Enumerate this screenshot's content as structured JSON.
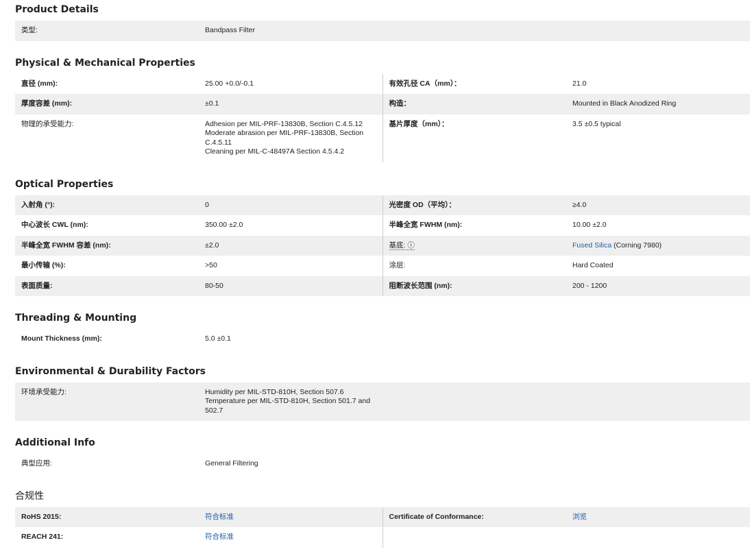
{
  "sections": [
    {
      "title": "Product Details",
      "rows": [
        {
          "label": "类型:",
          "value": "Bandpass Filter"
        }
      ]
    },
    {
      "title": "Physical & Mechanical Properties",
      "rows": [
        {
          "label": "直径 (mm):",
          "value": "25.00 +0.0/-0.1",
          "label2": "有效孔径 CA（mm）：",
          "value2": "21.0"
        },
        {
          "label": "厚度容差 (mm):",
          "value": "±0.1",
          "label2": "构造：",
          "value2": "Mounted in Black Anodized Ring"
        },
        {
          "label": "物理的承受能力:",
          "value": [
            "Adhesion per MIL-PRF-13830B, Section C.4.5.12",
            "Moderate abrasion per MIL-PRF-13830B, Section C.4.5.11",
            "Cleaning per MIL-C-48497A Section 4.5.4.2"
          ],
          "label2": "基片厚度（mm）：",
          "value2": "3.5 ±0.5 typical"
        }
      ]
    },
    {
      "title": "Optical Properties",
      "rows": [
        {
          "label": "入射角 (°):",
          "value": "0",
          "label2": "光密度 OD（平均）：",
          "value2": "≥4.0"
        },
        {
          "label": "中心波长 CWL (nm):",
          "value": "350.00 ±2.0",
          "label2": "半峰全宽 FWHM (nm):",
          "value2": "10.00 ±2.0"
        },
        {
          "label": "半峰全宽 FWHM 容差 (nm):",
          "value": "±2.0",
          "label2": "基底: ⓘ",
          "value2_link": "Fused Silica",
          "value2": " (Corning 7980)"
        },
        {
          "label": "最小传输 (%):",
          "value": ">50",
          "label2": "涂层:",
          "value2": "Hard Coated"
        },
        {
          "label": "表面质量:",
          "value": "80-50",
          "label2": "阻断波长范围 (nm):",
          "value2": "200 - 1200"
        }
      ]
    },
    {
      "title": "Threading & Mounting",
      "rows": [
        {
          "label": "Mount Thickness (mm):",
          "value": "5.0 ±0.1"
        }
      ]
    },
    {
      "title": "Environmental & Durability Factors",
      "rows": [
        {
          "label": "环境承受能力:",
          "value": [
            "Humidity per MIL-STD-810H, Section 507.6",
            "Temperature per MIL-STD-810H, Section 501.7 and 502.7"
          ]
        }
      ]
    },
    {
      "title": "Additional Info",
      "rows": [
        {
          "label": "典型应用:",
          "value": "General Filtering"
        }
      ]
    },
    {
      "title": "合规性",
      "rows": [
        {
          "label": "RoHS 2015:",
          "value_link": "符合标准",
          "label2": "Certificate of Conformance:",
          "value2_link": "浏览"
        },
        {
          "label": "REACH 241:",
          "value_link": "符合标准"
        }
      ]
    }
  ],
  "colors": {
    "row_alt": "#efefef",
    "link": "#1a5fa8"
  }
}
